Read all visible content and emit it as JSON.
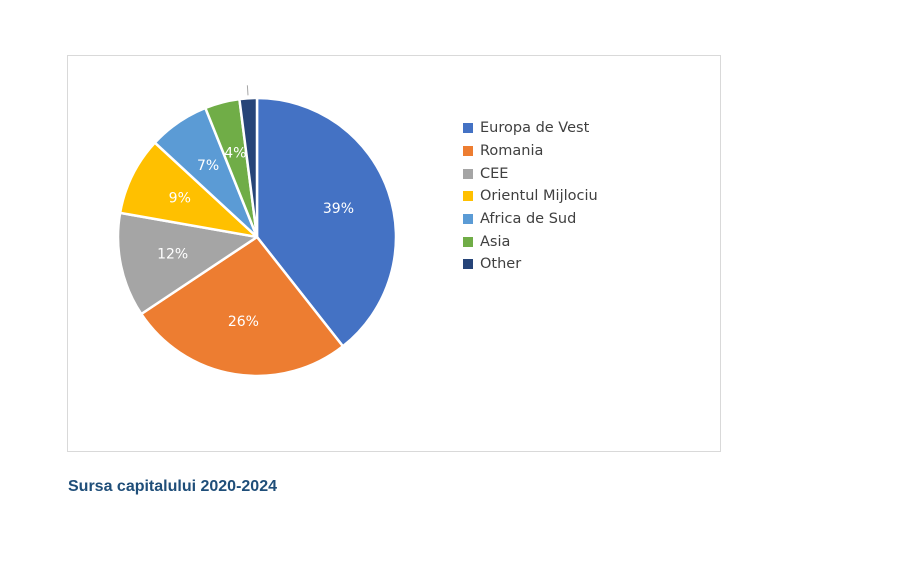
{
  "chart_data": {
    "type": "pie",
    "categories": [
      "Europa de Vest",
      "Romania",
      "CEE",
      "Orientul Mijlociu",
      "Africa de Sud",
      "Asia",
      "Other"
    ],
    "values": [
      39,
      26,
      12,
      9,
      7,
      4,
      2
    ],
    "data_labels": [
      "39%",
      "26%",
      "12%",
      "9%",
      "7%",
      "4%",
      ""
    ],
    "colors": [
      "#4472c4",
      "#ed7d31",
      "#a5a5a5",
      "#ffc000",
      "#5b9bd5",
      "#70ad47",
      "#264478"
    ],
    "legend_position": "right"
  },
  "caption": "Sursa capitalului 2020-2024"
}
